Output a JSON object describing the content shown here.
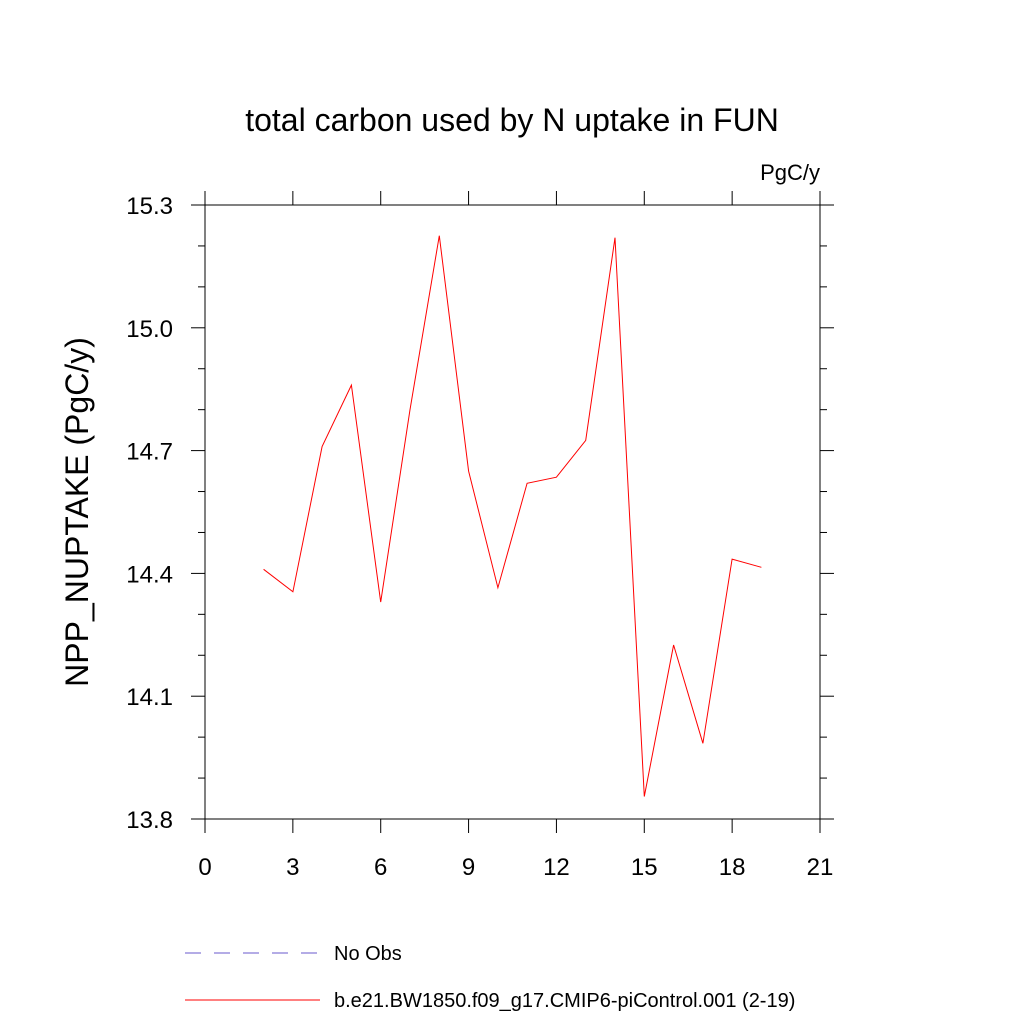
{
  "chart_data": {
    "type": "line",
    "title": "total carbon used by N uptake in FUN",
    "units_label": "PgC/y",
    "ylabel": "NPP_NUPTAKE  (PgC/y)",
    "xlabel": "",
    "xlim": [
      0,
      21
    ],
    "ylim": [
      13.8,
      15.3
    ],
    "x_ticks": [
      0,
      3,
      6,
      9,
      12,
      15,
      18,
      21
    ],
    "x_tick_labels": [
      "0",
      "3",
      "6",
      "9",
      "12",
      "15",
      "18",
      "21"
    ],
    "y_ticks": [
      13.8,
      14.1,
      14.4,
      14.7,
      15.0,
      15.3
    ],
    "y_tick_labels": [
      "13.8",
      "14.1",
      "14.4",
      "14.7",
      "15.0",
      "15.3"
    ],
    "grid": false,
    "legend_position": "bottom-left, below plot",
    "series": [
      {
        "name": "b.e21.BW1850.f09_g17.CMIP6-piControl.001 (2-19)",
        "color": "#ff0000",
        "line_style": "solid",
        "x": [
          2,
          3,
          4,
          5,
          6,
          7,
          8,
          9,
          10,
          11,
          12,
          13,
          14,
          15,
          16,
          17,
          18,
          19
        ],
        "y": [
          14.41,
          14.355,
          14.71,
          14.86,
          14.33,
          14.8,
          15.225,
          14.65,
          14.365,
          14.62,
          14.635,
          14.725,
          15.22,
          13.855,
          14.225,
          13.985,
          14.435,
          14.415
        ]
      }
    ],
    "legend": [
      {
        "label": "No Obs",
        "color": "#6a5acd",
        "line_style": "dashed"
      },
      {
        "label": "b.e21.BW1850.f09_g17.CMIP6-piControl.001 (2-19)",
        "color": "#ff0000",
        "line_style": "solid"
      }
    ]
  }
}
